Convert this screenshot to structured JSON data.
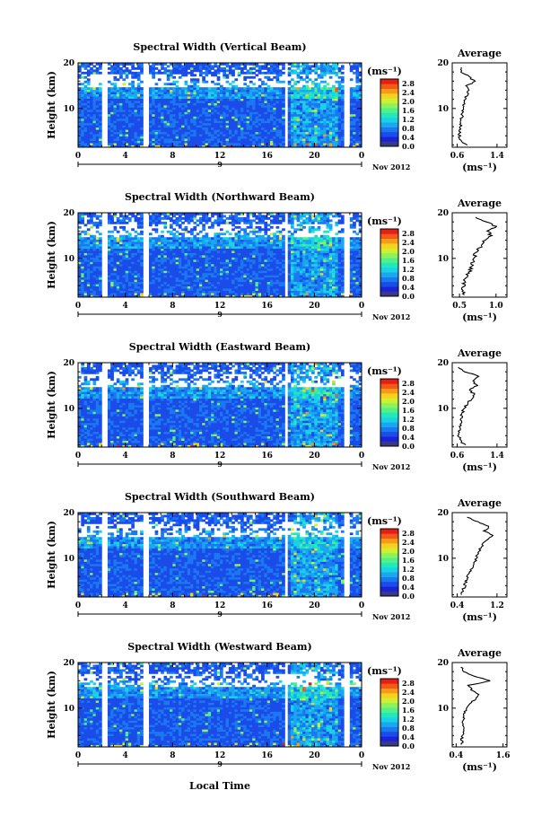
{
  "figure": {
    "xlabel": "Local Time",
    "ylabel": "Height (km)",
    "date_label": "Nov 2012",
    "day_label": "9",
    "unit_label": "(ms⁻¹)",
    "average_title": "Average"
  },
  "chart_data": [
    {
      "type": "heatmap",
      "title": "Spectral Width (Vertical Beam)",
      "xlabel": "Local Time",
      "ylabel": "Height (km)",
      "xlim": [
        0,
        24
      ],
      "ylim": [
        1.5,
        20
      ],
      "xticks": [
        "0",
        "4",
        "8",
        "12",
        "16",
        "20",
        "0"
      ],
      "yticks": [
        "10",
        "20"
      ],
      "colorbar": {
        "label": "(ms⁻¹)",
        "range": [
          0,
          3.0
        ],
        "ticks": [
          "0.0",
          "0.4",
          "0.8",
          "1.2",
          "1.6",
          "2.0",
          "2.4",
          "2.8"
        ]
      },
      "data_gaps_hours": [
        [
          2.0,
          2.5
        ],
        [
          5.6,
          5.9
        ],
        [
          17.6,
          17.8
        ],
        [
          22.5,
          23.0
        ]
      ],
      "average_profile": {
        "title": "Average",
        "xlabel": "(ms⁻¹)",
        "xlim": [
          0.5,
          1.6
        ],
        "xticks": [
          "0.6",
          "1.4"
        ],
        "ylim": [
          1.5,
          20
        ],
        "yticks": [
          "10",
          "20"
        ],
        "height_km": [
          2,
          3,
          4,
          5,
          6,
          7,
          8,
          9,
          10,
          11,
          12,
          13,
          14,
          15,
          16,
          17,
          18,
          19
        ],
        "width_ms": [
          0.78,
          0.66,
          0.64,
          0.66,
          0.66,
          0.67,
          0.69,
          0.7,
          0.72,
          0.73,
          0.75,
          0.8,
          0.84,
          0.8,
          0.95,
          0.82,
          0.7,
          0.68
        ]
      }
    },
    {
      "type": "heatmap",
      "title": "Spectral Width (Northward Beam)",
      "xlabel": "Local Time",
      "ylabel": "Height (km)",
      "xlim": [
        0,
        24
      ],
      "ylim": [
        1.5,
        20
      ],
      "xticks": [
        "0",
        "4",
        "8",
        "12",
        "16",
        "20",
        "0"
      ],
      "yticks": [
        "10",
        "20"
      ],
      "colorbar": {
        "label": "(ms⁻¹)",
        "range": [
          0,
          3.0
        ],
        "ticks": [
          "0.0",
          "0.4",
          "0.8",
          "1.2",
          "1.6",
          "2.0",
          "2.4",
          "2.8"
        ]
      },
      "data_gaps_hours": [
        [
          2.0,
          2.5
        ],
        [
          5.6,
          5.9
        ],
        [
          17.6,
          17.8
        ],
        [
          22.5,
          23.0
        ]
      ],
      "average_profile": {
        "title": "Average",
        "xlabel": "(ms⁻¹)",
        "xlim": [
          0.4,
          1.15
        ],
        "xticks": [
          "0.5",
          "1.0"
        ],
        "ylim": [
          1.5,
          20
        ],
        "yticks": [
          "10",
          "20"
        ],
        "height_km": [
          2,
          3,
          4,
          5,
          6,
          7,
          8,
          9,
          10,
          11,
          12,
          13,
          14,
          15,
          16,
          17,
          18,
          19
        ],
        "width_ms": [
          0.58,
          0.54,
          0.55,
          0.56,
          0.6,
          0.63,
          0.66,
          0.68,
          0.7,
          0.72,
          0.76,
          0.8,
          0.85,
          0.92,
          0.9,
          0.98,
          0.88,
          0.72
        ]
      }
    },
    {
      "type": "heatmap",
      "title": "Spectral Width (Eastward Beam)",
      "xlabel": "Local Time",
      "ylabel": "Height (km)",
      "xlim": [
        0,
        24
      ],
      "ylim": [
        1.5,
        20
      ],
      "xticks": [
        "0",
        "4",
        "8",
        "12",
        "16",
        "20",
        "0"
      ],
      "yticks": [
        "10",
        "20"
      ],
      "colorbar": {
        "label": "(ms⁻¹)",
        "range": [
          0,
          3.0
        ],
        "ticks": [
          "0.0",
          "0.4",
          "0.8",
          "1.2",
          "1.6",
          "2.0",
          "2.4",
          "2.8"
        ]
      },
      "data_gaps_hours": [
        [
          2.0,
          2.5
        ],
        [
          5.6,
          5.9
        ],
        [
          17.6,
          17.8
        ],
        [
          22.5,
          23.0
        ]
      ],
      "average_profile": {
        "title": "Average",
        "xlabel": "(ms⁻¹)",
        "xlim": [
          0.5,
          1.6
        ],
        "xticks": [
          "0.6",
          "1.4"
        ],
        "ylim": [
          1.5,
          20
        ],
        "yticks": [
          "10",
          "20"
        ],
        "height_km": [
          2,
          3,
          4,
          5,
          6,
          7,
          8,
          9,
          10,
          11,
          12,
          13,
          14,
          15,
          16,
          17,
          18,
          19
        ],
        "width_ms": [
          0.75,
          0.66,
          0.64,
          0.65,
          0.66,
          0.67,
          0.68,
          0.7,
          0.74,
          0.8,
          0.88,
          0.95,
          0.85,
          1.0,
          0.9,
          1.05,
          0.75,
          0.62
        ]
      }
    },
    {
      "type": "heatmap",
      "title": "Spectral Width (Southward Beam)",
      "xlabel": "Local Time",
      "ylabel": "Height (km)",
      "xlim": [
        0,
        24
      ],
      "ylim": [
        1.5,
        20
      ],
      "xticks": [
        "0",
        "4",
        "8",
        "12",
        "16",
        "20",
        "0"
      ],
      "yticks": [
        "10",
        "20"
      ],
      "colorbar": {
        "label": "(ms⁻¹)",
        "range": [
          0,
          3.0
        ],
        "ticks": [
          "0.0",
          "0.4",
          "0.8",
          "1.2",
          "1.6",
          "2.0",
          "2.4",
          "2.8"
        ]
      },
      "data_gaps_hours": [
        [
          2.0,
          2.5
        ],
        [
          5.6,
          5.9
        ],
        [
          17.6,
          17.8
        ],
        [
          22.5,
          23.0
        ]
      ],
      "average_profile": {
        "title": "Average",
        "xlabel": "(ms⁻¹)",
        "xlim": [
          0.3,
          1.4
        ],
        "xticks": [
          "0.4",
          "1.2"
        ],
        "ylim": [
          1.5,
          20
        ],
        "yticks": [
          "10",
          "20"
        ],
        "height_km": [
          2,
          3,
          4,
          5,
          6,
          7,
          8,
          9,
          10,
          11,
          12,
          13,
          14,
          15,
          16,
          17,
          18,
          19
        ],
        "width_ms": [
          0.5,
          0.52,
          0.55,
          0.58,
          0.62,
          0.66,
          0.7,
          0.74,
          0.78,
          0.82,
          0.86,
          0.92,
          1.0,
          1.1,
          0.95,
          1.05,
          0.8,
          0.6
        ]
      }
    },
    {
      "type": "heatmap",
      "title": "Spectral Width (Westward Beam)",
      "xlabel": "Local Time",
      "ylabel": "Height (km)",
      "xlim": [
        0,
        24
      ],
      "ylim": [
        1.5,
        20
      ],
      "xticks": [
        "0",
        "4",
        "8",
        "12",
        "16",
        "20",
        "0"
      ],
      "yticks": [
        "10",
        "20"
      ],
      "colorbar": {
        "label": "(ms⁻¹)",
        "range": [
          0,
          3.0
        ],
        "ticks": [
          "0.0",
          "0.4",
          "0.8",
          "1.2",
          "1.6",
          "2.0",
          "2.4",
          "2.8"
        ]
      },
      "data_gaps_hours": [
        [
          2.0,
          2.5
        ],
        [
          5.6,
          5.9
        ],
        [
          17.6,
          17.8
        ],
        [
          22.5,
          23.0
        ]
      ],
      "average_profile": {
        "title": "Average",
        "xlabel": "(ms⁻¹)",
        "xlim": [
          0.3,
          1.7
        ],
        "xticks": [
          "0.4",
          "1.6"
        ],
        "ylim": [
          1.5,
          20
        ],
        "yticks": [
          "10",
          "20"
        ],
        "height_km": [
          2,
          3,
          4,
          5,
          6,
          7,
          8,
          9,
          10,
          11,
          12,
          13,
          14,
          15,
          16,
          17,
          18,
          19
        ],
        "width_ms": [
          0.56,
          0.54,
          0.56,
          0.58,
          0.6,
          0.58,
          0.6,
          0.62,
          0.66,
          0.75,
          0.9,
          1.0,
          0.8,
          0.7,
          1.3,
          0.85,
          0.62,
          0.52
        ]
      }
    }
  ],
  "palette": [
    "#3a3a80",
    "#1c22d8",
    "#1b4be8",
    "#1a78f0",
    "#19a8f0",
    "#1ad2e6",
    "#23e8bc",
    "#50f08a",
    "#8ef25a",
    "#cff032",
    "#f6d21e",
    "#f79a18",
    "#f25a16",
    "#e61e14"
  ]
}
